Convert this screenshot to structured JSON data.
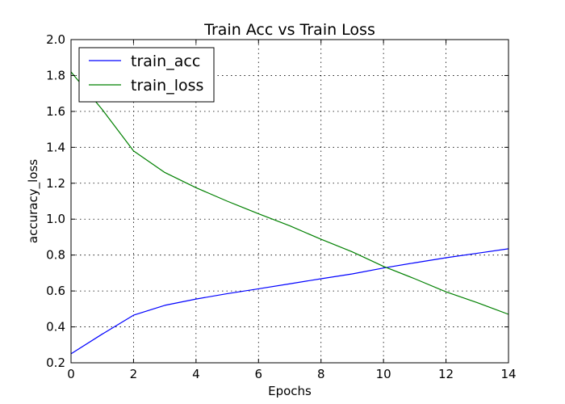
{
  "chart_data": {
    "type": "line",
    "title": "Train Acc vs Train Loss",
    "xlabel": "Epochs",
    "ylabel": "accuracy_loss",
    "xlim": [
      0,
      14
    ],
    "ylim": [
      0.2,
      2.0
    ],
    "xticks": [
      0,
      2,
      4,
      6,
      8,
      10,
      12,
      14
    ],
    "yticks": [
      0.2,
      0.4,
      0.6,
      0.8,
      1.0,
      1.2,
      1.4,
      1.6,
      1.8,
      2.0
    ],
    "ytick_labels": [
      "0.2",
      "0.4",
      "0.6",
      "0.8",
      "1.0",
      "1.2",
      "1.4",
      "1.6",
      "1.8",
      "2.0"
    ],
    "grid": true,
    "legend_position": "top-left",
    "x": [
      0,
      1,
      2,
      3,
      4,
      5,
      6,
      7,
      8,
      9,
      10,
      11,
      12,
      13,
      14
    ],
    "series": [
      {
        "name": "train_acc",
        "color": "#0000ff",
        "values": [
          0.25,
          0.36,
          0.465,
          0.52,
          0.555,
          0.585,
          0.612,
          0.64,
          0.668,
          0.695,
          0.728,
          0.757,
          0.785,
          0.81,
          0.835
        ]
      },
      {
        "name": "train_loss",
        "color": "#008000",
        "values": [
          1.82,
          1.61,
          1.38,
          1.26,
          1.175,
          1.1,
          1.03,
          0.963,
          0.888,
          0.818,
          0.737,
          0.668,
          0.595,
          0.535,
          0.47
        ]
      }
    ]
  }
}
